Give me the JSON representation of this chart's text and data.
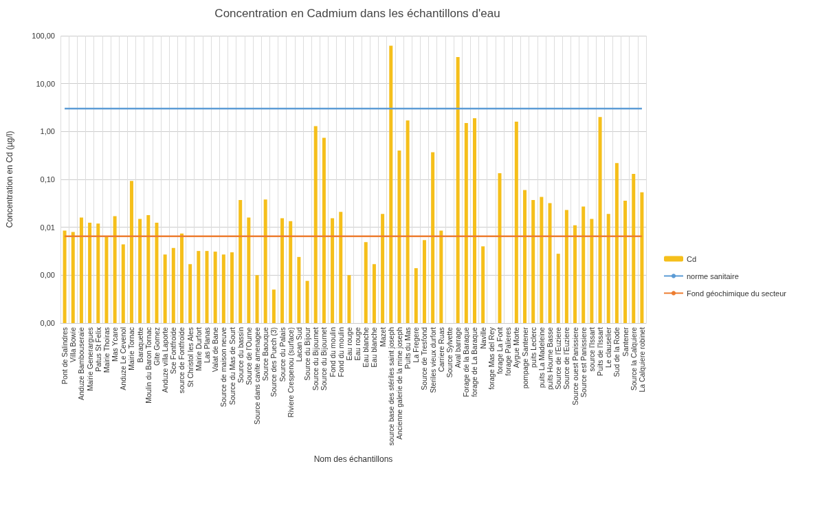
{
  "chart_data": {
    "type": "bar",
    "title": "Concentration en Cadmium dans les échantillons d'eau",
    "xlabel": "Nom des échantillons",
    "ylabel": "Concentration en Cd (µg/l)",
    "categories": [
      "Pont de Salindres",
      "Villa Bowie",
      "Anduze Bambouseraie",
      "Mairie Generargues",
      "Patus St Felix",
      "Mairie Thoiras",
      "Mas Ycare",
      "Anduze Le Cevenol",
      "Mairie Tornac",
      "Baraquette",
      "Moulin du Baron Tornac",
      "Gite Gomez",
      "Anduze villa Laporte",
      "Sce Fontfroide",
      "source de Fontfroide",
      "St Christol les Ales",
      "Mairie Durfort",
      "Las Planas",
      "Valat de Bane",
      "Source de maison neuve",
      "Source du Mas de Sourt",
      "Source du bassin",
      "Source de l'Ourne",
      "Source dans cavite amenagee",
      "Source Baouque",
      "Source des Puech (3)",
      "Source du Palais",
      "Riviere Crespenou (surface)",
      "Lacan Sud",
      "Source du Bijour",
      "Source du Bijournet",
      "Source du Bijournet",
      "Fond du moulin",
      "Fond du moulin",
      "Eau rouge",
      "Eau rouge",
      "Eau blanche",
      "Eau blanche",
      "Mazet",
      "source base des stériles saint joseph",
      "Ancienne galerie de la mine joseph",
      "Puits du Mas",
      "La Fregere",
      "Source de Tresfond",
      "Steriles vieux durfort",
      "Carriere Ruas",
      "Source Sylvette",
      "Aval barrage",
      "Forage de la Baraque",
      "forage de La Baraque",
      "Naville",
      "forage Mas del Rey",
      "forage La Font",
      "forage Palieres",
      "Aygue Morte",
      "pompage Santener",
      "puits Leclerc",
      "puits La Madeleine",
      "puits Houme Basse",
      "Source de l'Euziere",
      "Source de l'Euziere",
      "Source ouest Panissiere",
      "Source est Panissiere",
      "source l'Issart",
      "Puits de l'Issart",
      "Le clauselier",
      "Sud de la Rode",
      "Santener",
      "Source la Calquiere",
      "La Calquiere robinet"
    ],
    "series": [
      {
        "name": "Cd",
        "color": "#f5bf1b",
        "values": [
          0.0085,
          0.008,
          0.016,
          0.0125,
          0.012,
          0.0065,
          0.017,
          0.0044,
          0.093,
          0.015,
          0.018,
          0.0125,
          0.0027,
          0.0037,
          0.0074,
          0.0017,
          0.0032,
          0.0032,
          0.0031,
          0.0027,
          0.003,
          0.037,
          0.016,
          0.001,
          0.038,
          0.0005,
          0.0155,
          0.0134,
          0.0024,
          0.00076,
          1.3,
          0.74,
          0.0155,
          0.021,
          0.001,
          null,
          0.0049,
          0.0017,
          0.019,
          62,
          0.4,
          1.7,
          0.0014,
          0.0054,
          0.37,
          0.0085,
          null,
          36,
          1.5,
          1.9,
          0.004,
          null,
          0.135,
          null,
          1.6,
          0.06,
          0.037,
          0.043,
          0.032,
          0.0028,
          0.023,
          0.011,
          0.027,
          0.015,
          2,
          0.019,
          0.22,
          0.036,
          0.13,
          0.054
        ]
      },
      {
        "name": "norme sanitaire",
        "type": "line",
        "color": "#5b9bd5",
        "values": [
          3,
          3,
          3,
          3,
          3,
          3,
          3,
          3,
          3,
          3,
          3,
          3,
          3,
          3,
          3,
          3,
          3,
          3,
          3,
          3,
          3,
          3,
          3,
          3,
          3,
          3,
          3,
          3,
          3,
          3,
          3,
          3,
          3,
          3,
          3,
          3,
          3,
          3,
          3,
          3,
          3,
          3,
          3,
          3,
          3,
          3,
          3,
          3,
          3,
          3,
          3,
          3,
          3,
          3,
          3,
          3,
          3,
          3,
          3,
          3,
          3,
          3,
          3,
          3,
          3,
          3,
          3,
          3,
          3,
          3
        ]
      },
      {
        "name": "Fond géochimique du secteur",
        "type": "line",
        "color": "#ed7d31",
        "values": [
          0.0065,
          0.0065,
          0.0065,
          0.0065,
          0.0065,
          0.0065,
          0.0065,
          0.0065,
          0.0065,
          0.0065,
          0.0065,
          0.0065,
          0.0065,
          0.0065,
          0.0065,
          0.0065,
          0.0065,
          0.0065,
          0.0065,
          0.0065,
          0.0065,
          0.0065,
          0.0065,
          0.0065,
          0.0065,
          0.0065,
          0.0065,
          0.0065,
          0.0065,
          0.0065,
          0.0065,
          0.0065,
          0.0065,
          0.0065,
          0.0065,
          0.0065,
          0.0065,
          0.0065,
          0.0065,
          0.0065,
          0.0065,
          0.0065,
          0.0065,
          0.0065,
          0.0065,
          0.0065,
          0.0065,
          0.0065,
          0.0065,
          0.0065,
          0.0065,
          0.0065,
          0.0065,
          0.0065,
          0.0065,
          0.0065,
          0.0065,
          0.0065,
          0.0065,
          0.0065,
          0.0065,
          0.0065,
          0.0065,
          0.0065,
          0.0065,
          0.0065,
          0.0065,
          0.0065,
          0.0065,
          0.0065
        ]
      }
    ],
    "log": true,
    "ylim": [
      0.0001,
      100
    ],
    "yticks": [
      {
        "value": 0.0001,
        "label": "0,00"
      },
      {
        "value": 0.001,
        "label": "0,00"
      },
      {
        "value": 0.01,
        "label": "0,01"
      },
      {
        "value": 0.1,
        "label": "0,10"
      },
      {
        "value": 1,
        "label": "1,00"
      },
      {
        "value": 10,
        "label": "10,00"
      },
      {
        "value": 100,
        "label": "100,00"
      }
    ],
    "grid": true,
    "legend": "right",
    "marker": "none"
  }
}
